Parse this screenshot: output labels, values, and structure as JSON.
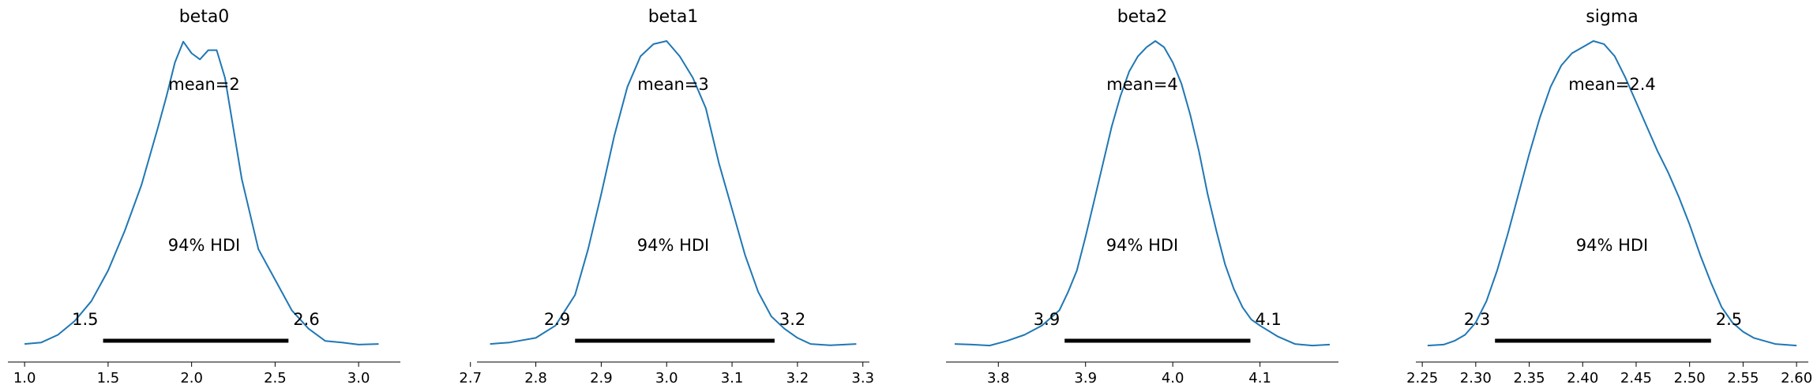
{
  "chart_data": [
    {
      "type": "area",
      "title": "beta0",
      "xlim": [
        0.9,
        3.25
      ],
      "xticks": [
        1.0,
        1.5,
        2.0,
        2.5,
        3.0
      ],
      "xtick_labels": [
        "1.0",
        "1.5",
        "2.0",
        "2.5",
        "3.0"
      ],
      "mean_label": "mean=2",
      "hdi_label": "94% HDI",
      "hdi": [
        1.47,
        2.58
      ],
      "hdi_low_label": "1.5",
      "hdi_high_label": "2.6",
      "line_color": "#1f77b4",
      "density": {
        "x": [
          1.0,
          1.1,
          1.2,
          1.3,
          1.4,
          1.5,
          1.6,
          1.7,
          1.8,
          1.85,
          1.9,
          1.95,
          2.0,
          2.05,
          2.1,
          2.15,
          2.2,
          2.3,
          2.4,
          2.5,
          2.6,
          2.7,
          2.8,
          2.9,
          3.0,
          3.12
        ],
        "y": [
          0.01,
          0.015,
          0.04,
          0.085,
          0.15,
          0.25,
          0.38,
          0.53,
          0.72,
          0.82,
          0.93,
          0.998,
          0.96,
          0.94,
          0.97,
          0.97,
          0.88,
          0.55,
          0.32,
          0.22,
          0.12,
          0.06,
          0.02,
          0.015,
          0.008,
          0.01
        ]
      }
    },
    {
      "type": "area",
      "title": "beta1",
      "xlim": [
        2.71,
        3.31
      ],
      "xticks": [
        2.7,
        2.8,
        2.9,
        3.0,
        3.1,
        3.2,
        3.3
      ],
      "xtick_labels": [
        "2.7",
        "2.8",
        "2.9",
        "3.0",
        "3.1",
        "3.2",
        "3.3"
      ],
      "mean_label": "mean=3",
      "hdi_label": "94% HDI",
      "hdi": [
        2.86,
        3.165
      ],
      "hdi_low_label": "2.9",
      "hdi_high_label": "3.2",
      "line_color": "#1f77b4",
      "density": {
        "x": [
          2.73,
          2.76,
          2.8,
          2.83,
          2.86,
          2.88,
          2.9,
          2.92,
          2.94,
          2.96,
          2.98,
          3.0,
          3.02,
          3.04,
          3.06,
          3.08,
          3.1,
          3.12,
          3.14,
          3.16,
          3.18,
          3.2,
          3.22,
          3.25,
          3.29
        ],
        "y": [
          0.01,
          0.015,
          0.03,
          0.07,
          0.17,
          0.32,
          0.5,
          0.69,
          0.85,
          0.95,
          0.99,
          1.0,
          0.95,
          0.88,
          0.78,
          0.6,
          0.45,
          0.3,
          0.18,
          0.1,
          0.06,
          0.03,
          0.01,
          0.006,
          0.01
        ]
      }
    },
    {
      "type": "area",
      "title": "beta2",
      "xlim": [
        3.74,
        4.19
      ],
      "xticks": [
        3.8,
        3.9,
        4.0,
        4.1
      ],
      "xtick_labels": [
        "3.8",
        "3.9",
        "4.0",
        "4.1"
      ],
      "mean_label": "mean=4",
      "hdi_label": "94% HDI",
      "hdi": [
        3.876,
        4.089
      ],
      "hdi_low_label": "3.9",
      "hdi_high_label": "4.1",
      "line_color": "#1f77b4",
      "density": {
        "x": [
          3.75,
          3.77,
          3.79,
          3.81,
          3.83,
          3.85,
          3.87,
          3.88,
          3.89,
          3.9,
          3.91,
          3.92,
          3.93,
          3.94,
          3.95,
          3.96,
          3.97,
          3.98,
          3.99,
          4.0,
          4.01,
          4.02,
          4.03,
          4.04,
          4.05,
          4.06,
          4.07,
          4.08,
          4.09,
          4.1,
          4.12,
          4.14,
          4.16,
          4.18
        ],
        "y": [
          0.01,
          0.008,
          0.005,
          0.02,
          0.04,
          0.07,
          0.12,
          0.18,
          0.25,
          0.36,
          0.48,
          0.6,
          0.72,
          0.82,
          0.9,
          0.95,
          0.98,
          1.0,
          0.98,
          0.93,
          0.86,
          0.76,
          0.64,
          0.5,
          0.38,
          0.27,
          0.19,
          0.13,
          0.09,
          0.07,
          0.035,
          0.01,
          0.005,
          0.008
        ]
      }
    },
    {
      "type": "area",
      "title": "sigma",
      "xlim": [
        2.244,
        2.611
      ],
      "xticks": [
        2.25,
        2.3,
        2.35,
        2.4,
        2.45,
        2.5,
        2.55,
        2.6
      ],
      "xtick_labels": [
        "2.25",
        "2.30",
        "2.35",
        "2.40",
        "2.45",
        "2.50",
        "2.55",
        "2.60"
      ],
      "mean_label": "mean=2.4",
      "hdi_label": "94% HDI",
      "hdi": [
        2.318,
        2.52
      ],
      "hdi_low_label": "2.3",
      "hdi_high_label": "2.5",
      "line_color": "#1f77b4",
      "density": {
        "x": [
          2.255,
          2.27,
          2.28,
          2.29,
          2.3,
          2.31,
          2.32,
          2.33,
          2.34,
          2.35,
          2.36,
          2.37,
          2.38,
          2.39,
          2.4,
          2.41,
          2.42,
          2.43,
          2.44,
          2.45,
          2.46,
          2.47,
          2.48,
          2.49,
          2.5,
          2.51,
          2.52,
          2.53,
          2.54,
          2.55,
          2.56,
          2.58,
          2.6
        ],
        "y": [
          0.005,
          0.008,
          0.02,
          0.04,
          0.08,
          0.15,
          0.25,
          0.37,
          0.5,
          0.63,
          0.75,
          0.85,
          0.92,
          0.96,
          0.98,
          1.0,
          0.99,
          0.95,
          0.88,
          0.8,
          0.72,
          0.64,
          0.57,
          0.49,
          0.4,
          0.3,
          0.21,
          0.13,
          0.08,
          0.05,
          0.03,
          0.01,
          0.005
        ]
      }
    }
  ]
}
